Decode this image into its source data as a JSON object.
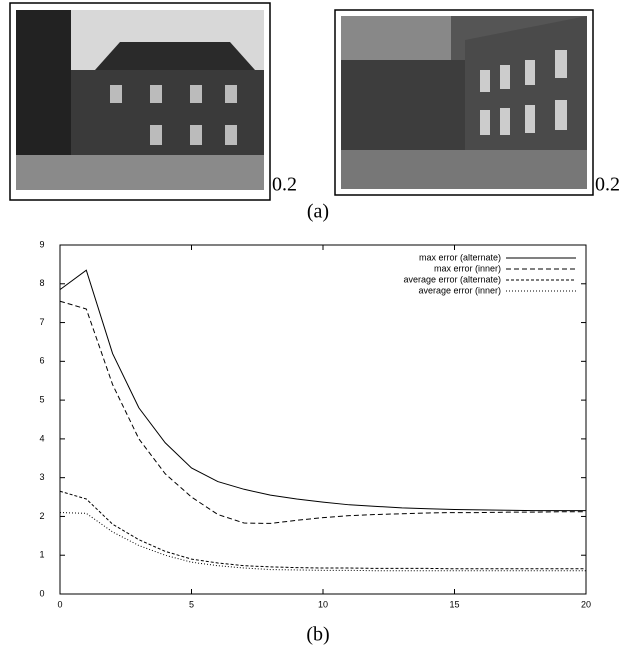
{
  "panel_a": {
    "scale_labels": [
      "0.2",
      "0.2"
    ],
    "caption": "(a)"
  },
  "chart_data": {
    "type": "line",
    "x": [
      0,
      1,
      2,
      3,
      4,
      5,
      6,
      7,
      8,
      9,
      10,
      11,
      12,
      13,
      14,
      15,
      16,
      17,
      18,
      19,
      20
    ],
    "series": [
      {
        "name": "max error (alternate)",
        "color": "#000000",
        "style": "solid",
        "values": [
          7.85,
          8.35,
          6.2,
          4.8,
          3.9,
          3.25,
          2.9,
          2.7,
          2.55,
          2.45,
          2.37,
          2.3,
          2.26,
          2.22,
          2.2,
          2.18,
          2.17,
          2.16,
          2.15,
          2.15,
          2.15
        ]
      },
      {
        "name": "max error (inner)",
        "color": "#000000",
        "style": "dashed",
        "values": [
          7.55,
          7.35,
          5.4,
          4.0,
          3.1,
          2.5,
          2.05,
          1.83,
          1.82,
          1.9,
          1.97,
          2.02,
          2.05,
          2.07,
          2.09,
          2.1,
          2.1,
          2.11,
          2.11,
          2.12,
          2.12
        ]
      },
      {
        "name": "average error (alternate)",
        "color": "#000000",
        "style": "short-dashed",
        "values": [
          2.65,
          2.45,
          1.8,
          1.4,
          1.1,
          0.9,
          0.8,
          0.73,
          0.7,
          0.68,
          0.67,
          0.67,
          0.66,
          0.66,
          0.66,
          0.65,
          0.65,
          0.65,
          0.65,
          0.65,
          0.65
        ]
      },
      {
        "name": "average error (inner)",
        "color": "#000000",
        "style": "dotted",
        "values": [
          2.1,
          2.08,
          1.6,
          1.25,
          1.0,
          0.82,
          0.73,
          0.67,
          0.63,
          0.62,
          0.61,
          0.61,
          0.6,
          0.6,
          0.6,
          0.6,
          0.6,
          0.6,
          0.6,
          0.6,
          0.6
        ]
      }
    ],
    "xlim": [
      0,
      20
    ],
    "xticks": [
      0,
      5,
      10,
      15,
      20
    ],
    "ylim": [
      0,
      9
    ],
    "yticks": [
      0,
      1,
      2,
      3,
      4,
      5,
      6,
      7,
      8,
      9
    ],
    "legend": "top-right"
  },
  "panel_b": {
    "caption": "(b)"
  }
}
